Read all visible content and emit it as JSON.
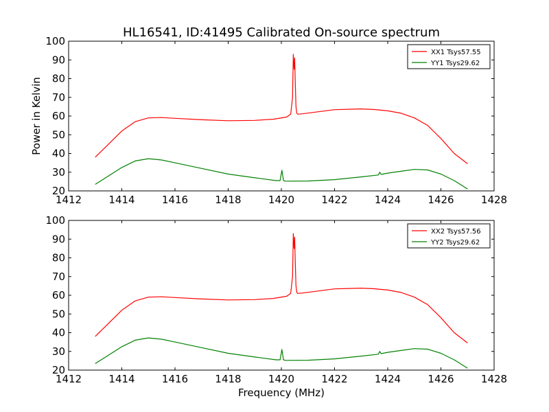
{
  "title": "HL16541, ID:41495 Calibrated On-source spectrum",
  "chart_data": [
    {
      "type": "line",
      "ylabel": "Power in Kelvin",
      "xlabel": "",
      "xlim": [
        1412,
        1428
      ],
      "ylim": [
        20,
        100
      ],
      "x_ticks": [
        "1412",
        "1414",
        "1416",
        "1418",
        "1420",
        "1422",
        "1424",
        "1426",
        "1428"
      ],
      "y_ticks": [
        "20",
        "30",
        "40",
        "50",
        "60",
        "70",
        "80",
        "90",
        "100"
      ],
      "grid": false,
      "legend": "top-right",
      "series": [
        {
          "name": "XX1 Tsys57.55",
          "color": "#ff0000",
          "x": [
            1413.0,
            1413.5,
            1414.0,
            1414.5,
            1415.0,
            1415.5,
            1416.0,
            1417.0,
            1418.0,
            1419.0,
            1419.7,
            1420.2,
            1420.35,
            1420.42,
            1420.45,
            1420.48,
            1420.5,
            1420.52,
            1420.55,
            1420.58,
            1420.62,
            1420.8,
            1421.5,
            1422.0,
            1423.0,
            1423.5,
            1424.0,
            1424.5,
            1425.0,
            1425.5,
            1426.0,
            1426.5,
            1427.0
          ],
          "y": [
            38,
            45,
            52,
            57,
            59,
            59.2,
            58.8,
            58,
            57.5,
            57.7,
            58.3,
            59.5,
            61,
            70,
            93,
            85,
            91,
            80,
            65,
            61.5,
            61,
            61.2,
            62.5,
            63.4,
            63.8,
            63.5,
            62.8,
            61.5,
            59,
            55,
            48,
            40,
            34.5
          ]
        },
        {
          "name": "YY1 Tsys29.62",
          "color": "#008000",
          "x": [
            1413.0,
            1413.5,
            1414.0,
            1414.5,
            1415.0,
            1415.5,
            1416.0,
            1417.0,
            1418.0,
            1419.0,
            1419.8,
            1419.95,
            1420.02,
            1420.08,
            1420.15,
            1421.0,
            1422.0,
            1423.0,
            1423.65,
            1423.7,
            1423.75,
            1424.0,
            1424.5,
            1425.0,
            1425.5,
            1426.0,
            1426.5,
            1427.0
          ],
          "y": [
            23.5,
            28,
            32.5,
            36,
            37.2,
            36.5,
            35,
            32,
            29,
            27,
            25.5,
            25.5,
            31,
            25.5,
            25.2,
            25.3,
            26,
            27.5,
            28.5,
            30,
            28.8,
            29.5,
            30.5,
            31.5,
            31.2,
            29,
            25.5,
            21
          ]
        }
      ]
    },
    {
      "type": "line",
      "ylabel": "",
      "xlabel": "Frequency (MHz)",
      "xlim": [
        1412,
        1428
      ],
      "ylim": [
        20,
        100
      ],
      "x_ticks": [
        "1412",
        "1414",
        "1416",
        "1418",
        "1420",
        "1422",
        "1424",
        "1426",
        "1428"
      ],
      "y_ticks": [
        "20",
        "30",
        "40",
        "50",
        "60",
        "70",
        "80",
        "90",
        "100"
      ],
      "grid": false,
      "legend": "top-right",
      "series": [
        {
          "name": "XX2 Tsys57.56",
          "color": "#ff0000",
          "x": [
            1413.0,
            1413.5,
            1414.0,
            1414.5,
            1415.0,
            1415.5,
            1416.0,
            1417.0,
            1418.0,
            1419.0,
            1419.7,
            1420.2,
            1420.35,
            1420.42,
            1420.45,
            1420.48,
            1420.5,
            1420.52,
            1420.55,
            1420.58,
            1420.62,
            1420.8,
            1421.5,
            1422.0,
            1423.0,
            1423.5,
            1424.0,
            1424.5,
            1425.0,
            1425.5,
            1426.0,
            1426.5,
            1427.0
          ],
          "y": [
            38,
            45,
            52,
            57,
            59,
            59.2,
            58.8,
            58,
            57.5,
            57.7,
            58.3,
            59.5,
            61,
            70,
            93,
            85,
            91,
            80,
            65,
            61.5,
            61,
            61.2,
            62.5,
            63.4,
            63.8,
            63.5,
            62.8,
            61.5,
            59,
            55,
            48,
            40,
            34.5
          ]
        },
        {
          "name": "YY2 Tsys29.62",
          "color": "#008000",
          "x": [
            1413.0,
            1413.5,
            1414.0,
            1414.5,
            1415.0,
            1415.5,
            1416.0,
            1417.0,
            1418.0,
            1419.0,
            1419.8,
            1419.95,
            1420.02,
            1420.08,
            1420.15,
            1421.0,
            1422.0,
            1423.0,
            1423.65,
            1423.7,
            1423.75,
            1424.0,
            1424.5,
            1425.0,
            1425.5,
            1426.0,
            1426.5,
            1427.0
          ],
          "y": [
            23.5,
            28,
            32.5,
            36,
            37.2,
            36.5,
            35,
            32,
            29,
            27,
            25.5,
            25.5,
            31,
            25.5,
            25.2,
            25.3,
            26,
            27.5,
            28.5,
            30,
            28.8,
            29.5,
            30.5,
            31.5,
            31.2,
            29,
            25.5,
            21
          ]
        }
      ]
    }
  ]
}
